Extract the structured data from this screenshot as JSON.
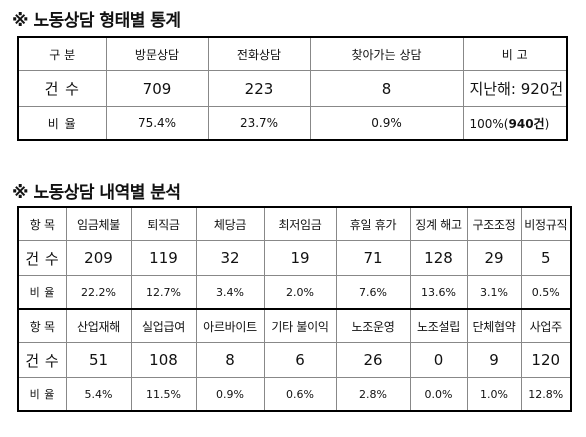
{
  "section1": {
    "title": "※ 노동상담 형태별 통계",
    "headers": [
      "구  분",
      "방문상담",
      "전화상담",
      "찾아가는 상담",
      "비  고"
    ],
    "rows": [
      {
        "label": "건 수",
        "values": [
          "709",
          "223",
          "8"
        ],
        "note": "지난해: 920건"
      },
      {
        "label": "비 율",
        "values": [
          "75.4%",
          "23.7%",
          "0.9%"
        ],
        "note_prefix": "100%(",
        "note_bold": "940건",
        "note_suffix": ")"
      }
    ]
  },
  "section2": {
    "title": "※ 노동상담 내역별 분석",
    "blocks": [
      {
        "header_label": "항 목",
        "count_label": "건 수",
        "ratio_label": "비 율",
        "items": [
          "임금체불",
          "퇴직금",
          "체당금",
          "최저임금",
          "휴일 휴가",
          "징계 해고",
          "구조조정",
          "비정규직"
        ],
        "counts": [
          "209",
          "119",
          "32",
          "19",
          "71",
          "128",
          "29",
          "5"
        ],
        "ratios": [
          "22.2%",
          "12.7%",
          "3.4%",
          "2.0%",
          "7.6%",
          "13.6%",
          "3.1%",
          "0.5%"
        ]
      },
      {
        "header_label": "항 목",
        "count_label": "건 수",
        "ratio_label": "비 율",
        "items": [
          "산업재해",
          "실업급여",
          "아르바이트",
          "기타 불이익",
          "노조운영",
          "노조설립",
          "단체협약",
          "사업주"
        ],
        "counts": [
          "51",
          "108",
          "8",
          "6",
          "26",
          "0",
          "9",
          "120"
        ],
        "ratios": [
          "5.4%",
          "11.5%",
          "0.9%",
          "0.6%",
          "2.8%",
          "0.0%",
          "1.0%",
          "12.8%"
        ]
      }
    ]
  }
}
